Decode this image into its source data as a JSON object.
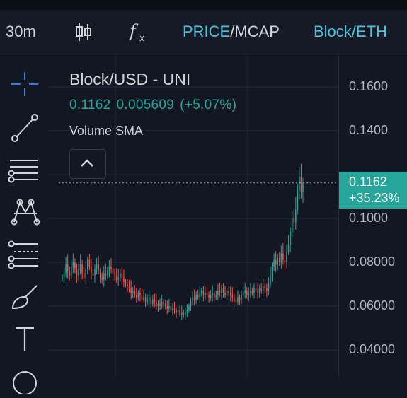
{
  "toolbar": {
    "interval": "30m",
    "price_label": "PRICE",
    "separator": "/",
    "mcap_label": "MCAP",
    "pair_label": "Block/ETH"
  },
  "legend": {
    "title": "Block/USD - UNI",
    "close": "0.1162",
    "change": "0.005609",
    "change_pct": "(+5.07%)",
    "volume_label": "Volume SMA"
  },
  "price_axis": {
    "labels": [
      "0.1600",
      "0.1400",
      "0.1000",
      "0.08000",
      "0.06000",
      "0.04000"
    ]
  },
  "last_price_tag": {
    "price": "0.1162",
    "change": "+35.23%"
  },
  "left_tools": [
    "crosshair-icon",
    "trend-line-icon",
    "horizontal-lines-icon",
    "pattern-icon",
    "fib-icon",
    "brush-icon",
    "text-icon",
    "shape-icon"
  ],
  "colors": {
    "background": "#131722",
    "up": "#26a69a",
    "down": "#ef5350",
    "accent": "#4dc3df",
    "grid": "#232836"
  },
  "chart_data": {
    "type": "candlestick",
    "title": "Block/USD - UNI",
    "y_range": [
      0.03,
      0.175
    ],
    "last_price": 0.1162,
    "closes": [
      0.073,
      0.075,
      0.079,
      0.076,
      0.074,
      0.078,
      0.08,
      0.077,
      0.074,
      0.076,
      0.079,
      0.075,
      0.073,
      0.077,
      0.081,
      0.078,
      0.075,
      0.074,
      0.077,
      0.079,
      0.076,
      0.073,
      0.072,
      0.075,
      0.074,
      0.076,
      0.078,
      0.077,
      0.075,
      0.074,
      0.072,
      0.073,
      0.075,
      0.073,
      0.071,
      0.07,
      0.069,
      0.068,
      0.066,
      0.067,
      0.065,
      0.064,
      0.066,
      0.065,
      0.063,
      0.064,
      0.062,
      0.063,
      0.064,
      0.061,
      0.063,
      0.062,
      0.06,
      0.061,
      0.06,
      0.062,
      0.061,
      0.06,
      0.059,
      0.06,
      0.058,
      0.059,
      0.058,
      0.057,
      0.058,
      0.056,
      0.057,
      0.056,
      0.057,
      0.058,
      0.06,
      0.062,
      0.064,
      0.063,
      0.065,
      0.064,
      0.066,
      0.067,
      0.065,
      0.066,
      0.065,
      0.064,
      0.065,
      0.066,
      0.064,
      0.065,
      0.067,
      0.066,
      0.068,
      0.066,
      0.065,
      0.067,
      0.066,
      0.065,
      0.064,
      0.063,
      0.062,
      0.064,
      0.063,
      0.065,
      0.066,
      0.067,
      0.065,
      0.066,
      0.067,
      0.066,
      0.068,
      0.067,
      0.066,
      0.068,
      0.067,
      0.069,
      0.068,
      0.067,
      0.07,
      0.074,
      0.078,
      0.081,
      0.079,
      0.082,
      0.08,
      0.084,
      0.081,
      0.08,
      0.085,
      0.088,
      0.094,
      0.1,
      0.098,
      0.104,
      0.113,
      0.119,
      0.112,
      0.1162
    ],
    "x_range": [
      0,
      133
    ]
  }
}
